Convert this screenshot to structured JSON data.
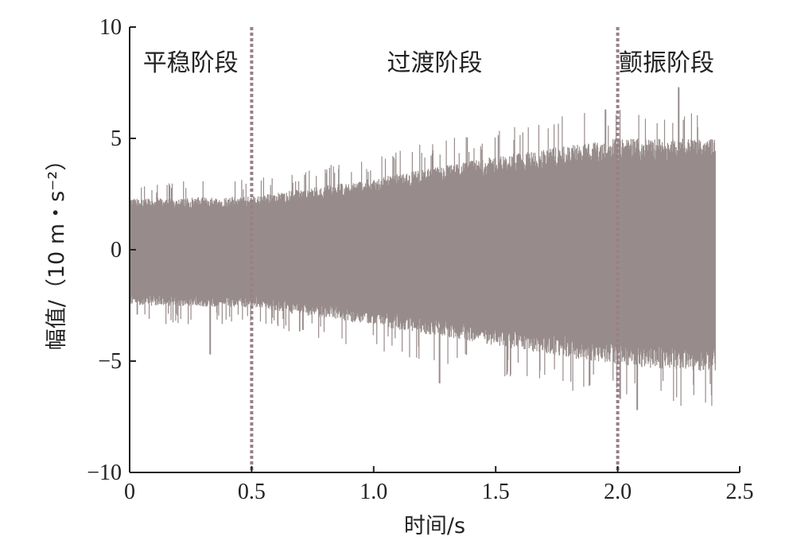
{
  "chart_data": {
    "type": "line",
    "title": "",
    "xlabel": "时间/s",
    "ylabel": "幅值/（10 m・s⁻²）",
    "xlim": [
      0,
      2.5
    ],
    "ylim": [
      -10,
      10
    ],
    "xticks": [
      "0",
      "0.5",
      "1.0",
      "1.5",
      "2.0",
      "2.5"
    ],
    "yticks": [
      "10",
      "5",
      "0",
      "−5",
      "−10"
    ],
    "grid": false,
    "series": [
      {
        "color": "#978c8b",
        "envelope_t": [
          0,
          0.5,
          1.0,
          1.5,
          2.0,
          2.4
        ],
        "envelope_upper": [
          2.3,
          2.4,
          3.2,
          4.2,
          5.0,
          5.0
        ],
        "envelope_lower": [
          -2.5,
          -2.6,
          -3.4,
          -4.3,
          -5.2,
          -5.5
        ],
        "peaks": [
          {
            "t": 0.33,
            "v": -4.7
          },
          {
            "t": 0.71,
            "v": -3.6
          },
          {
            "t": 1.27,
            "v": -6.0
          },
          {
            "t": 1.95,
            "v": 6.3
          },
          {
            "t": 2.01,
            "v": -6.7
          },
          {
            "t": 2.08,
            "v": -7.2
          },
          {
            "t": 2.25,
            "v": 7.3
          }
        ]
      }
    ],
    "phases": [
      {
        "label": "平稳阶段",
        "start": 0,
        "end": 0.5
      },
      {
        "label": "过渡阶段",
        "start": 0.5,
        "end": 2.0
      },
      {
        "label": "颤振阶段",
        "start": 2.0,
        "end": 2.4
      }
    ],
    "dividers": [
      0.5,
      2.0
    ],
    "divider_color": "#9a7f8a",
    "axis_color": "#222222"
  }
}
